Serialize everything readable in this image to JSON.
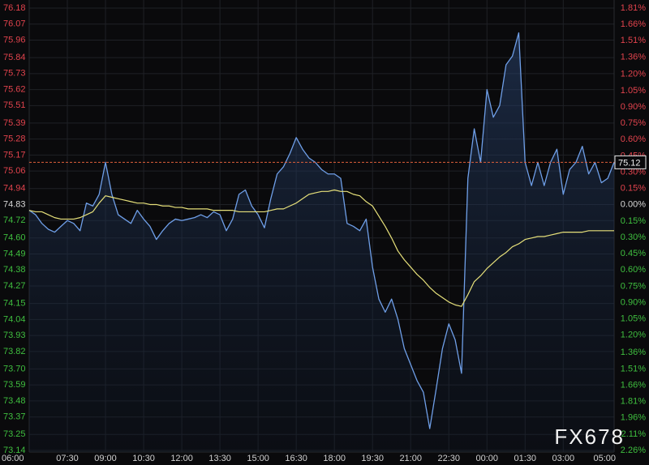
{
  "chart_data": {
    "type": "line",
    "x": [
      "06:00",
      "06:15",
      "06:30",
      "06:45",
      "07:00",
      "07:15",
      "07:30",
      "07:45",
      "08:00",
      "08:15",
      "08:30",
      "08:45",
      "09:00",
      "09:15",
      "09:30",
      "09:45",
      "10:00",
      "10:15",
      "10:30",
      "10:45",
      "11:00",
      "11:15",
      "11:30",
      "11:45",
      "12:00",
      "12:15",
      "12:30",
      "12:45",
      "13:00",
      "13:15",
      "13:30",
      "13:45",
      "14:00",
      "14:15",
      "14:30",
      "14:45",
      "15:00",
      "15:15",
      "15:30",
      "15:45",
      "16:00",
      "16:15",
      "16:30",
      "16:45",
      "17:00",
      "17:15",
      "17:30",
      "17:45",
      "18:00",
      "18:15",
      "18:30",
      "18:45",
      "19:00",
      "19:15",
      "19:30",
      "19:45",
      "20:00",
      "20:15",
      "20:30",
      "20:45",
      "21:00",
      "21:15",
      "21:30",
      "21:45",
      "22:00",
      "22:15",
      "22:30",
      "22:45",
      "23:00",
      "23:15",
      "23:30",
      "23:45",
      "00:00",
      "00:15",
      "00:30",
      "00:45",
      "01:00",
      "01:15",
      "01:30",
      "01:45",
      "02:00",
      "02:15",
      "02:30",
      "02:45",
      "03:00",
      "03:15",
      "03:30",
      "03:45",
      "04:00",
      "04:15",
      "04:30",
      "04:45",
      "05:00"
    ],
    "xticks": [
      "06:00",
      "07:30",
      "09:00",
      "10:30",
      "12:00",
      "13:30",
      "15:00",
      "16:30",
      "18:00",
      "19:30",
      "21:00",
      "22:30",
      "00:00",
      "01:30",
      "03:00",
      "05:00"
    ],
    "series": [
      {
        "color": "#6f9fe8",
        "values": [
          74.79,
          74.76,
          74.7,
          74.66,
          74.64,
          74.68,
          74.72,
          74.7,
          74.65,
          74.84,
          74.82,
          74.9,
          75.12,
          74.9,
          74.76,
          74.73,
          74.7,
          74.79,
          74.73,
          74.68,
          74.59,
          74.65,
          74.7,
          74.73,
          74.72,
          74.73,
          74.74,
          74.76,
          74.74,
          74.78,
          74.76,
          74.65,
          74.73,
          74.9,
          74.93,
          74.82,
          74.76,
          74.67,
          74.87,
          75.04,
          75.09,
          75.18,
          75.29,
          75.21,
          75.15,
          75.12,
          75.07,
          75.04,
          75.04,
          75.01,
          74.7,
          74.68,
          74.65,
          74.73,
          74.4,
          74.18,
          74.09,
          74.18,
          74.04,
          73.84,
          73.73,
          73.62,
          73.54,
          73.29,
          73.56,
          73.84,
          74.01,
          73.9,
          73.67,
          75.01,
          75.35,
          75.12,
          75.62,
          75.43,
          75.51,
          75.79,
          75.85,
          76.01,
          75.12,
          74.96,
          75.12,
          74.96,
          75.12,
          75.21,
          74.9,
          75.07,
          75.12,
          75.23,
          75.04,
          75.12,
          74.98,
          75.01,
          75.12
        ]
      },
      {
        "color": "#e6e07a",
        "values": [
          74.79,
          74.78,
          74.78,
          74.76,
          74.74,
          74.73,
          74.73,
          74.73,
          74.74,
          74.76,
          74.78,
          74.84,
          74.89,
          74.88,
          74.87,
          74.86,
          74.85,
          74.84,
          74.84,
          74.83,
          74.83,
          74.82,
          74.82,
          74.81,
          74.81,
          74.8,
          74.8,
          74.8,
          74.8,
          74.79,
          74.79,
          74.79,
          74.79,
          74.78,
          74.78,
          74.78,
          74.78,
          74.78,
          74.79,
          74.8,
          74.8,
          74.82,
          74.84,
          74.87,
          74.9,
          74.91,
          74.92,
          74.92,
          74.93,
          74.92,
          74.92,
          74.9,
          74.89,
          74.85,
          74.82,
          74.75,
          74.68,
          74.6,
          74.51,
          74.45,
          74.4,
          74.35,
          74.31,
          74.26,
          74.22,
          74.19,
          74.16,
          74.14,
          74.13,
          74.21,
          74.3,
          74.34,
          74.39,
          74.43,
          74.47,
          74.5,
          74.54,
          74.56,
          74.59,
          74.6,
          74.61,
          74.61,
          74.62,
          74.63,
          74.64,
          74.64,
          74.64,
          74.64,
          74.65,
          74.65,
          74.65,
          74.65,
          74.65
        ]
      }
    ],
    "ylim": [
      73.14,
      76.18
    ],
    "yticks": [
      76.18,
      76.07,
      75.96,
      75.84,
      75.73,
      75.62,
      75.51,
      75.39,
      75.28,
      75.17,
      75.06,
      74.94,
      74.83,
      74.72,
      {
        "value": 74.6,
        "label": "74.60"
      },
      74.49,
      74.38,
      74.27,
      74.15,
      74.04,
      73.93,
      73.82,
      {
        "value": 73.7,
        "label": "73.70"
      },
      73.59,
      73.48,
      73.37,
      73.25,
      73.14
    ],
    "y2lim": [
      -2.26,
      1.81
    ],
    "y2ticks": [
      {
        "value": 1.81,
        "label": "1.81%"
      },
      {
        "value": 1.66,
        "label": "1.66%"
      },
      {
        "value": 1.51,
        "label": "1.51%"
      },
      {
        "value": 1.36,
        "label": "1.36%"
      },
      {
        "value": 1.2,
        "label": "1.20%"
      },
      {
        "value": 1.05,
        "label": "1.05%"
      },
      {
        "value": 0.9,
        "label": "0.90%"
      },
      {
        "value": 0.75,
        "label": "0.75%"
      },
      {
        "value": 0.6,
        "label": "0.60%"
      },
      {
        "value": 0.45,
        "label": "0.45%"
      },
      {
        "value": 0.3,
        "label": "0.30%"
      },
      {
        "value": 0.15,
        "label": "0.15%"
      },
      {
        "value": 0,
        "label": "0.00%"
      },
      {
        "value": -0.15,
        "label": "0.15%"
      },
      {
        "value": -0.3,
        "label": "0.30%"
      },
      {
        "value": -0.45,
        "label": "0.45%"
      },
      {
        "value": -0.6,
        "label": "0.60%"
      },
      {
        "value": -0.75,
        "label": "0.75%"
      },
      {
        "value": -0.9,
        "label": "0.90%"
      },
      {
        "value": -1.05,
        "label": "1.05%"
      },
      {
        "value": -1.2,
        "label": "1.20%"
      },
      {
        "value": -1.36,
        "label": "1.36%"
      },
      {
        "value": -1.51,
        "label": "1.51%"
      },
      {
        "value": -1.66,
        "label": "1.66%"
      },
      {
        "value": -1.81,
        "label": "1.81%"
      },
      {
        "value": -1.96,
        "label": "1.96%"
      },
      {
        "value": -2.11,
        "label": "2.11%"
      },
      {
        "value": -2.26,
        "label": "2.26%"
      }
    ],
    "last_price": 75.12,
    "grid": true,
    "watermark": "FX678"
  }
}
